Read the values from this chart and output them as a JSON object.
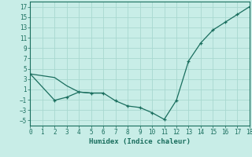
{
  "xlabel": "Humidex (Indice chaleur)",
  "background_color": "#c8ede7",
  "grid_color": "#a8d8d0",
  "line_color": "#1a6e5e",
  "line1_x": [
    0,
    2,
    3,
    4,
    5,
    6,
    7,
    8,
    9,
    10,
    11,
    12,
    13,
    14,
    15,
    16,
    17,
    18
  ],
  "line1_y": [
    4.0,
    -1.1,
    -0.5,
    0.5,
    0.3,
    0.3,
    -1.2,
    -2.2,
    -2.5,
    -3.5,
    -4.8,
    -1.1,
    6.5,
    10.0,
    12.5,
    14.0,
    15.5,
    17.0
  ],
  "line2_x": [
    0,
    2,
    3,
    4,
    5,
    6
  ],
  "line2_y": [
    4.0,
    3.3,
    1.7,
    0.5,
    0.3,
    0.3
  ],
  "ylim": [
    -6,
    18
  ],
  "xlim": [
    0,
    18
  ],
  "yticks": [
    -5,
    -3,
    -1,
    1,
    3,
    5,
    7,
    9,
    11,
    13,
    15,
    17
  ],
  "xticks": [
    0,
    1,
    2,
    3,
    4,
    5,
    6,
    7,
    8,
    9,
    10,
    11,
    12,
    13,
    14,
    15,
    16,
    17,
    18
  ]
}
